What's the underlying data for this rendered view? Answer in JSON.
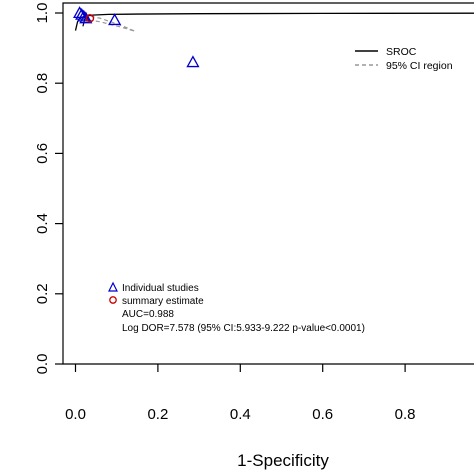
{
  "chart_data": {
    "type": "scatter",
    "title": "",
    "xlabel": "1-Specificity",
    "ylabel": "",
    "xlim": [
      -0.04,
      1.0
    ],
    "ylim": [
      0.0,
      1.0
    ],
    "x_ticks": [
      "0.0",
      "0.2",
      "0.4",
      "0.6",
      "0.8"
    ],
    "x_tick_values": [
      0.0,
      0.2,
      0.4,
      0.6,
      0.8
    ],
    "y_ticks": [
      "0.0",
      "0.2",
      "0.4",
      "0.6",
      "0.8",
      "1.0"
    ],
    "y_tick_values": [
      0.0,
      0.2,
      0.4,
      0.6,
      0.8,
      1.0
    ],
    "grid": false,
    "series": [
      {
        "name": "Individual studies",
        "marker": "triangle",
        "color": "#0000cc",
        "points": [
          {
            "x": 0.01,
            "y": 1.0
          },
          {
            "x": 0.015,
            "y": 0.995
          },
          {
            "x": 0.02,
            "y": 0.99
          },
          {
            "x": 0.025,
            "y": 0.985
          },
          {
            "x": 0.095,
            "y": 0.98
          },
          {
            "x": 0.285,
            "y": 0.86
          }
        ]
      },
      {
        "name": "summary estimate",
        "marker": "circle",
        "color": "#cc0000",
        "points": [
          {
            "x": 0.035,
            "y": 0.985
          }
        ]
      }
    ],
    "sroc_curve": {
      "name": "SROC",
      "color": "#000000",
      "points": [
        {
          "x": 0.0,
          "y": 0.95
        },
        {
          "x": 0.005,
          "y": 0.975
        },
        {
          "x": 0.01,
          "y": 0.985
        },
        {
          "x": 0.02,
          "y": 0.99
        },
        {
          "x": 0.04,
          "y": 0.994
        },
        {
          "x": 0.08,
          "y": 0.996
        },
        {
          "x": 0.15,
          "y": 0.997
        },
        {
          "x": 0.3,
          "y": 0.998
        },
        {
          "x": 0.6,
          "y": 0.999
        },
        {
          "x": 1.0,
          "y": 0.9995
        }
      ]
    },
    "confidence_region": {
      "name": "95% CI region",
      "color": "#999999",
      "points": [
        {
          "x": 0.02,
          "y": 0.995
        },
        {
          "x": 0.06,
          "y": 0.985
        },
        {
          "x": 0.11,
          "y": 0.965
        },
        {
          "x": 0.145,
          "y": 0.948
        },
        {
          "x": 0.11,
          "y": 0.96
        },
        {
          "x": 0.06,
          "y": 0.975
        },
        {
          "x": 0.03,
          "y": 0.98
        },
        {
          "x": 0.02,
          "y": 0.99
        }
      ]
    },
    "summary_ci_segment": [
      {
        "x": 0.025,
        "y": 0.993
      },
      {
        "x": 0.018,
        "y": 0.962
      }
    ],
    "legend_top": {
      "placement": "top-right",
      "entries": [
        "SROC",
        "95% CI region"
      ]
    },
    "legend_bottom": {
      "placement": "bottom-left",
      "entries": [
        "Individual studies",
        "summary estimate"
      ],
      "auc_text": "AUC=0.988",
      "dor_text": "Log DOR=7.578 (95% CI:5.933-9.222 p-value<0.0001)"
    }
  }
}
